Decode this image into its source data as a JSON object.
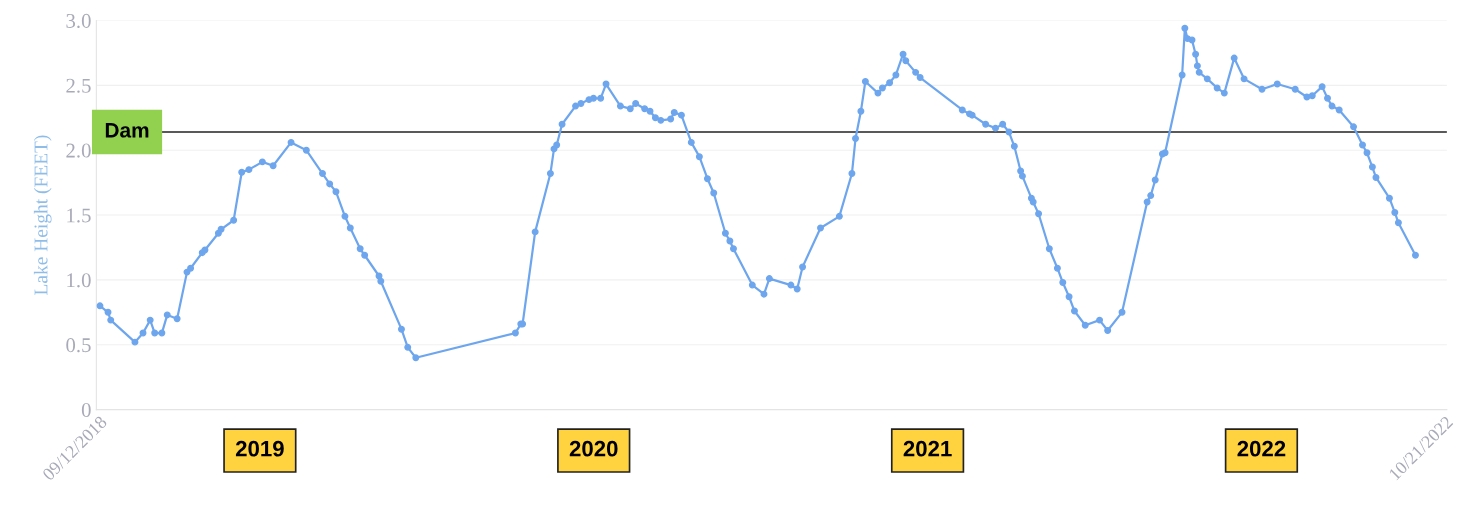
{
  "chart_data": {
    "type": "line",
    "ylabel": "Lake Height (FEET)",
    "x": [
      "2018-09-13",
      "2018-09-22",
      "2018-09-25",
      "2018-10-22",
      "2018-10-31",
      "2018-11-08",
      "2018-11-13",
      "2018-11-21",
      "2018-11-27",
      "2018-12-08",
      "2018-12-19",
      "2018-12-23",
      "2019-01-05",
      "2019-01-08",
      "2019-01-23",
      "2019-01-26",
      "2019-02-09",
      "2019-02-18",
      "2019-02-26",
      "2019-03-13",
      "2019-03-25",
      "2019-04-14",
      "2019-05-01",
      "2019-05-19",
      "2019-05-27",
      "2019-06-03",
      "2019-06-13",
      "2019-06-19",
      "2019-06-30",
      "2019-07-05",
      "2019-07-21",
      "2019-07-23",
      "2019-08-15",
      "2019-08-22",
      "2019-08-31",
      "2019-12-20",
      "2019-12-26",
      "2019-12-28",
      "2020-01-11",
      "2020-01-28",
      "2020-02-01",
      "2020-02-04",
      "2020-02-10",
      "2020-02-25",
      "2020-03-02",
      "2020-03-11",
      "2020-03-16",
      "2020-03-24",
      "2020-03-30",
      "2020-04-15",
      "2020-04-26",
      "2020-05-02",
      "2020-05-12",
      "2020-05-18",
      "2020-05-24",
      "2020-05-30",
      "2020-06-10",
      "2020-06-14",
      "2020-06-22",
      "2020-07-03",
      "2020-07-12",
      "2020-07-21",
      "2020-07-28",
      "2020-08-10",
      "2020-08-15",
      "2020-08-19",
      "2020-09-09",
      "2020-09-22",
      "2020-09-28",
      "2020-10-22",
      "2020-10-29",
      "2020-11-04",
      "2020-11-24",
      "2020-12-15",
      "2020-12-29",
      "2021-01-02",
      "2021-01-08",
      "2021-01-13",
      "2021-01-27",
      "2021-02-01",
      "2021-02-09",
      "2021-02-16",
      "2021-02-24",
      "2021-02-27",
      "2021-03-10",
      "2021-03-15",
      "2021-05-01",
      "2021-05-09",
      "2021-05-12",
      "2021-05-27",
      "2021-06-07",
      "2021-06-15",
      "2021-06-22",
      "2021-06-28",
      "2021-07-05",
      "2021-07-07",
      "2021-07-17",
      "2021-07-19",
      "2021-07-25",
      "2021-08-06",
      "2021-08-15",
      "2021-08-21",
      "2021-08-28",
      "2021-09-03",
      "2021-09-15",
      "2021-10-01",
      "2021-10-10",
      "2021-10-26",
      "2021-11-23",
      "2021-11-27",
      "2021-12-02",
      "2021-12-10",
      "2021-12-13",
      "2022-01-01",
      "2022-01-04",
      "2022-01-07",
      "2022-01-12",
      "2022-01-16",
      "2022-01-18",
      "2022-01-20",
      "2022-01-29",
      "2022-02-09",
      "2022-02-17",
      "2022-02-28",
      "2022-03-11",
      "2022-03-31",
      "2022-04-17",
      "2022-05-07",
      "2022-05-20",
      "2022-05-26",
      "2022-06-06",
      "2022-06-12",
      "2022-06-17",
      "2022-06-25",
      "2022-07-11",
      "2022-07-21",
      "2022-07-26",
      "2022-08-01",
      "2022-08-05",
      "2022-08-20",
      "2022-08-26",
      "2022-08-30",
      "2022-09-18"
    ],
    "series": [
      {
        "color": "#6ea6ee",
        "values": [
          0.8,
          0.75,
          0.69,
          0.52,
          0.59,
          0.69,
          0.59,
          0.59,
          0.73,
          0.7,
          1.06,
          1.09,
          1.21,
          1.23,
          1.36,
          1.39,
          1.46,
          1.83,
          1.85,
          1.91,
          1.88,
          2.06,
          2.0,
          1.82,
          1.74,
          1.68,
          1.49,
          1.4,
          1.24,
          1.19,
          1.03,
          0.99,
          0.62,
          0.48,
          0.4,
          0.59,
          0.66,
          0.66,
          1.37,
          1.82,
          2.01,
          2.04,
          2.2,
          2.34,
          2.36,
          2.39,
          2.4,
          2.4,
          2.51,
          2.34,
          2.32,
          2.36,
          2.32,
          2.3,
          2.25,
          2.23,
          2.24,
          2.29,
          2.27,
          2.06,
          1.95,
          1.78,
          1.67,
          1.36,
          1.3,
          1.24,
          0.96,
          0.89,
          1.01,
          0.96,
          0.93,
          1.1,
          1.4,
          1.49,
          1.82,
          2.09,
          2.3,
          2.53,
          2.44,
          2.48,
          2.52,
          2.58,
          2.74,
          2.69,
          2.6,
          2.56,
          2.31,
          2.28,
          2.27,
          2.2,
          2.17,
          2.2,
          2.14,
          2.03,
          1.84,
          1.8,
          1.63,
          1.6,
          1.51,
          1.24,
          1.09,
          0.98,
          0.87,
          0.76,
          0.65,
          0.69,
          0.61,
          0.75,
          1.6,
          1.65,
          1.77,
          1.97,
          1.98,
          2.58,
          2.94,
          2.86,
          2.85,
          2.74,
          2.65,
          2.6,
          2.55,
          2.48,
          2.44,
          2.71,
          2.55,
          2.47,
          2.51,
          2.47,
          2.41,
          2.42,
          2.49,
          2.4,
          2.34,
          2.31,
          2.18,
          2.04,
          1.98,
          1.87,
          1.79,
          1.63,
          1.52,
          1.44,
          1.19
        ]
      }
    ],
    "xlim": [
      "2018-09-09",
      "2022-10-23"
    ],
    "ylim": [
      0,
      3.0
    ],
    "yticks": [
      0,
      0.5,
      {
        "value": 1,
        "label": "1.0"
      },
      1.5,
      {
        "value": 2,
        "label": "2.0"
      },
      2.5,
      {
        "value": 3,
        "label": "3.0"
      }
    ],
    "xticks": [
      {
        "value": "2018-09-12",
        "label": "09/12/2018"
      },
      {
        "value": "2022-10-21",
        "label": "10/21/2022"
      }
    ],
    "grid": "y",
    "marker": "circle",
    "line_style": "solid",
    "ref_lines": [
      {
        "axis": "y",
        "value": 2.14,
        "label": "Dam",
        "color": "#222222",
        "line_style": "solid"
      }
    ],
    "annotations": [
      "2019",
      "2020",
      "2021",
      "2022"
    ]
  }
}
